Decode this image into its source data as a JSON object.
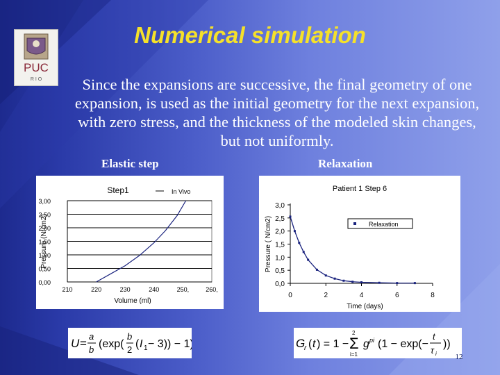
{
  "slide": {
    "title": "Numerical simulation",
    "body_text": "Since the expansions are successive, the final geometry of one expansion, is used as the initial geometry for the next expansion, with zero stress, and the thickness of the modeled skin changes, but not uniformly.",
    "left_heading": "Elastic step",
    "right_heading": "Relaxation",
    "page_number": "12",
    "logo_text": "PUC",
    "logo_subtext": "R I O"
  },
  "colors": {
    "title": "#f5e12a",
    "text": "#ffffff",
    "curve": "#1a237e",
    "gridline": "#000000"
  },
  "chart_data": [
    {
      "type": "line",
      "title": "Step1",
      "xlabel": "Volume (ml)",
      "ylabel": "Pressure (N/cm2)",
      "x_ticks": [
        "210",
        "220",
        "230",
        "240",
        "250,",
        "260,"
      ],
      "y_ticks": [
        "0,00",
        "0,50",
        "1,00",
        "1,50",
        "2,00",
        "2,50",
        "3,00"
      ],
      "xlim": [
        210,
        260
      ],
      "ylim": [
        0,
        3
      ],
      "grid": true,
      "legend": "top-center",
      "series": [
        {
          "name": "In Vivo",
          "x": [
            220,
            225,
            230,
            235,
            240,
            244,
            248,
            251
          ],
          "y": [
            0.0,
            0.3,
            0.6,
            0.98,
            1.45,
            1.9,
            2.45,
            3.0
          ]
        }
      ]
    },
    {
      "type": "line",
      "title": "Patient 1  Step 6",
      "xlabel": "Time (days)",
      "ylabel": "Pressure ( N/cm2)",
      "x_ticks": [
        "0",
        "2",
        "4",
        "6",
        "8"
      ],
      "y_ticks": [
        "0,0",
        "0,5",
        "1,0",
        "1,5",
        "2,0",
        "2,5",
        "3,0"
      ],
      "xlim": [
        0,
        8
      ],
      "ylim": [
        0,
        3
      ],
      "grid": false,
      "legend": "right",
      "series": [
        {
          "name": "Relaxation",
          "x": [
            0,
            0.25,
            0.5,
            0.75,
            1,
            1.5,
            2,
            2.5,
            3,
            3.5,
            4,
            5,
            6,
            7
          ],
          "y": [
            2.55,
            2.0,
            1.55,
            1.2,
            0.9,
            0.52,
            0.3,
            0.18,
            0.1,
            0.06,
            0.04,
            0.02,
            0.01,
            0.01
          ]
        }
      ]
    }
  ]
}
